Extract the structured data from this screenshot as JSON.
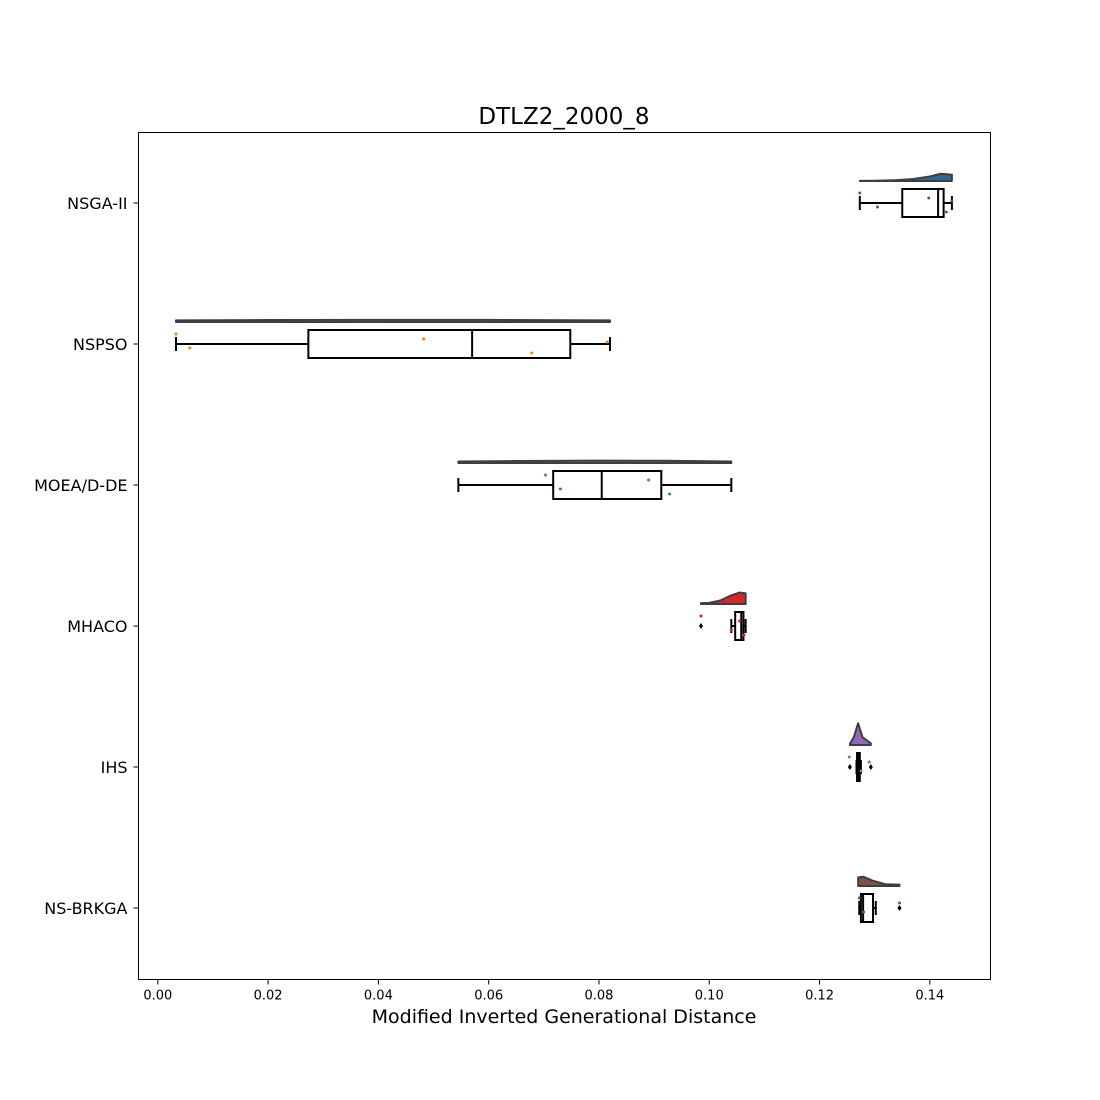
{
  "chart_data": {
    "type": "raincloud",
    "title": "DTLZ2_2000_8",
    "xlabel": "Modified Inverted Generational Distance",
    "ylabel": "",
    "xlim": [
      -0.0035,
      0.151
    ],
    "xticks": [
      0.0,
      0.02,
      0.04,
      0.06,
      0.08,
      0.1,
      0.12,
      0.14
    ],
    "xtick_labels": [
      "0.00",
      "0.02",
      "0.04",
      "0.06",
      "0.08",
      "0.10",
      "0.12",
      "0.14"
    ],
    "grid": false,
    "series": [
      {
        "name": "NSGA-II",
        "color": "#2e6896",
        "box": {
          "whisker_low": 0.1273,
          "q1": 0.135,
          "median": 0.1415,
          "q3": 0.1425,
          "whisker_high": 0.144
        },
        "outliers": [],
        "points": [
          0.1273,
          0.1305,
          0.1398,
          0.143,
          0.144
        ],
        "density": [
          [
            0.1273,
            0.01
          ],
          [
            0.13,
            0.02
          ],
          [
            0.134,
            0.06
          ],
          [
            0.137,
            0.14
          ],
          [
            0.14,
            0.32
          ],
          [
            0.142,
            0.52
          ],
          [
            0.144,
            0.45
          ]
        ]
      },
      {
        "name": "NSPSO",
        "color": "#ff7f0e",
        "box": {
          "whisker_low": 0.0033,
          "q1": 0.0273,
          "median": 0.057,
          "q3": 0.0748,
          "whisker_high": 0.082
        },
        "outliers": [],
        "points": [
          0.0033,
          0.0058,
          0.0482,
          0.0678,
          0.0815
        ],
        "density": [
          [
            0.0033,
            0.12
          ],
          [
            0.02,
            0.14
          ],
          [
            0.04,
            0.15
          ],
          [
            0.06,
            0.15
          ],
          [
            0.082,
            0.12
          ]
        ]
      },
      {
        "name": "MOEA/D-DE",
        "color": "#2ca02c",
        "box": {
          "whisker_low": 0.0545,
          "q1": 0.0717,
          "median": 0.0805,
          "q3": 0.0913,
          "whisker_high": 0.104
        },
        "outliers": [],
        "points": [
          0.0703,
          0.073,
          0.089,
          0.0928
        ],
        "density": [
          [
            0.0545,
            0.11
          ],
          [
            0.065,
            0.14
          ],
          [
            0.08,
            0.17
          ],
          [
            0.092,
            0.16
          ],
          [
            0.104,
            0.11
          ]
        ]
      },
      {
        "name": "MHACO",
        "color": "#d62728",
        "box": {
          "whisker_low": 0.104,
          "q1": 0.1047,
          "median": 0.1058,
          "q3": 0.1062,
          "whisker_high": 0.1066
        },
        "outliers": [
          0.0985
        ],
        "points": [
          0.0985,
          0.104,
          0.1055,
          0.1063
        ],
        "density": [
          [
            0.0985,
            0.06
          ],
          [
            0.1,
            0.08
          ],
          [
            0.102,
            0.25
          ],
          [
            0.104,
            0.62
          ],
          [
            0.1055,
            0.82
          ],
          [
            0.1066,
            0.76
          ]
        ]
      },
      {
        "name": "IHS",
        "color": "#9467bd",
        "box": {
          "whisker_low": 0.1267,
          "q1": 0.1268,
          "median": 0.1271,
          "q3": 0.1273,
          "whisker_high": 0.1275
        },
        "outliers": [
          0.1255,
          0.1293
        ],
        "points": [
          0.1254,
          0.1275,
          0.129
        ],
        "density": [
          [
            0.1255,
            0.08
          ],
          [
            0.1262,
            0.55
          ],
          [
            0.127,
            1.55
          ],
          [
            0.1278,
            0.55
          ],
          [
            0.1293,
            0.12
          ]
        ]
      },
      {
        "name": "NS-BRKGA",
        "color": "#7e5046",
        "box": {
          "whisker_low": 0.1272,
          "q1": 0.1275,
          "median": 0.1279,
          "q3": 0.1297,
          "whisker_high": 0.1302
        },
        "outliers": [
          0.1345
        ],
        "points": [
          0.1272,
          0.128,
          0.1345
        ],
        "density": [
          [
            0.127,
            0.62
          ],
          [
            0.128,
            0.66
          ],
          [
            0.1295,
            0.4
          ],
          [
            0.132,
            0.12
          ],
          [
            0.1345,
            0.1
          ]
        ]
      }
    ]
  }
}
